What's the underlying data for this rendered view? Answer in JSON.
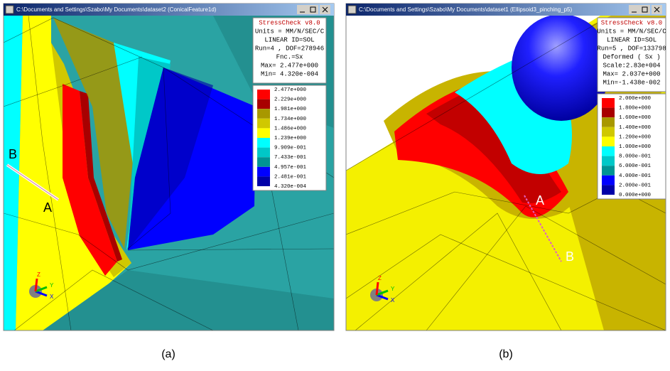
{
  "windows": [
    {
      "title": "C:\\Documents and Settings\\Szabo\\My Documents\\dataset2 (ConicalFeature1d)",
      "info": [
        "StressCheck v8.0",
        "Units = MM/N/SEC/C",
        "LINEAR ID=SOL",
        "Run=4 , DOF=278946",
        "Fnc.=Sx",
        "Max= 2.477e+000",
        "Min= 4.320e-004"
      ],
      "legend": {
        "labels": [
          "2.477e+000",
          "2.229e+000",
          "1.981e+000",
          "1.734e+000",
          "1.486e+000",
          "1.239e+000",
          "9.909e-001",
          "7.433e-001",
          "4.957e-001",
          "2.481e-001",
          "4.320e-004"
        ],
        "colors": [
          "#ff0000",
          "#a80000",
          "#a89800",
          "#d0c800",
          "#ffff00",
          "#00ffff",
          "#00c8c8",
          "#009494",
          "#0000ff",
          "#0000a8"
        ]
      },
      "points": [
        "A",
        "B"
      ],
      "axes": [
        "X",
        "Y",
        "Z"
      ],
      "caption": "(a)"
    },
    {
      "title": "C:\\Documents and Settings\\Szabo\\My Documents\\dataset1 (Ellipsoid3_pinching_p5)",
      "info": [
        "StressCheck v8.0",
        "Units = MM/N/SEC/C",
        "LINEAR ID=SOL",
        "Run=5 , DOF=133798",
        "Deformed ( Sx )",
        "Scale:2.83e+004",
        "Max= 2.037e+000",
        "Min=-1.438e-002"
      ],
      "legend": {
        "labels": [
          "2.000e+000",
          "1.800e+000",
          "1.600e+000",
          "1.400e+000",
          "1.200e+000",
          "1.000e+000",
          "8.000e-001",
          "6.000e-001",
          "4.000e-001",
          "2.000e-001",
          "0.000e+000"
        ],
        "colors": [
          "#ff0000",
          "#a80000",
          "#a89800",
          "#d0c800",
          "#ffff00",
          "#00ffff",
          "#00c8c8",
          "#009494",
          "#0000ff",
          "#0000a8"
        ]
      },
      "points": [
        "A",
        "B"
      ],
      "axes": [
        "X",
        "Y",
        "Z"
      ],
      "caption": "(b)"
    }
  ]
}
